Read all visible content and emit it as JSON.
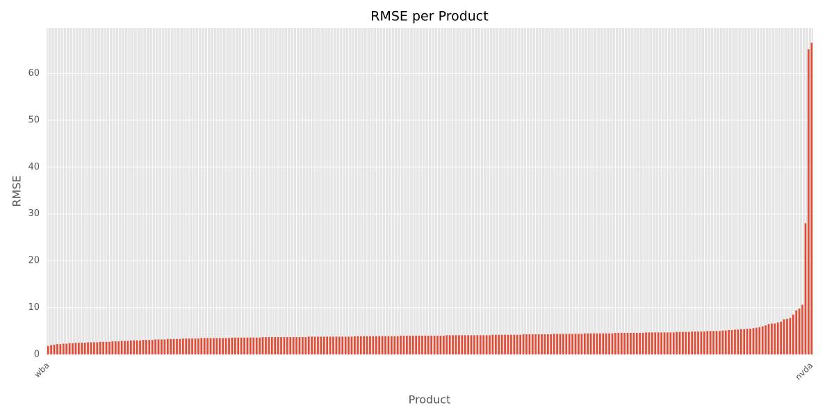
{
  "chart_data": {
    "type": "bar",
    "title": "RMSE per Product",
    "x_label": "Product",
    "y_label": "RMSE",
    "categories": [
      "wba",
      null,
      null,
      null,
      null,
      null,
      null,
      null,
      null,
      null,
      null,
      null,
      null,
      null,
      null,
      null,
      null,
      null,
      null,
      null,
      null,
      null,
      null,
      null,
      null,
      null,
      null,
      null,
      null,
      null,
      null,
      null,
      null,
      null,
      null,
      null,
      null,
      null,
      null,
      null,
      null,
      null,
      null,
      null,
      null,
      null,
      null,
      null,
      null,
      null,
      null,
      null,
      null,
      null,
      null,
      null,
      null,
      null,
      null,
      null,
      null,
      null,
      null,
      null,
      null,
      null,
      null,
      null,
      null,
      null,
      null,
      null,
      null,
      null,
      null,
      null,
      null,
      null,
      null,
      null,
      null,
      null,
      null,
      null,
      null,
      null,
      null,
      null,
      null,
      null,
      null,
      null,
      null,
      null,
      null,
      null,
      null,
      null,
      null,
      null,
      null,
      null,
      null,
      null,
      null,
      null,
      null,
      null,
      null,
      null,
      null,
      null,
      null,
      null,
      null,
      null,
      null,
      null,
      null,
      null,
      null,
      null,
      null,
      null,
      null,
      null,
      null,
      null,
      null,
      null,
      null,
      null,
      null,
      null,
      null,
      null,
      null,
      null,
      null,
      null,
      null,
      null,
      null,
      null,
      null,
      null,
      null,
      null,
      null,
      null,
      null,
      null,
      null,
      null,
      null,
      null,
      null,
      null,
      null,
      null,
      null,
      null,
      null,
      null,
      null,
      null,
      null,
      null,
      null,
      null,
      null,
      null,
      null,
      null,
      null,
      null,
      null,
      null,
      null,
      null,
      null,
      null,
      null,
      null,
      null,
      null,
      null,
      null,
      null,
      null,
      null,
      null,
      null,
      null,
      null,
      null,
      null,
      null,
      null,
      null,
      null,
      null,
      null,
      null,
      null,
      null,
      null,
      null,
      null,
      null,
      null,
      null,
      null,
      null,
      null,
      null,
      null,
      null,
      null,
      null,
      null,
      null,
      null,
      null,
      null,
      null,
      null,
      null,
      null,
      null,
      null,
      null,
      null,
      null,
      null,
      null,
      null,
      null,
      null,
      null,
      null,
      null,
      null,
      null,
      null,
      null,
      null,
      null,
      null,
      "nvda"
    ],
    "values": [
      1.8,
      2.0,
      2.1,
      2.2,
      2.2,
      2.3,
      2.3,
      2.4,
      2.4,
      2.5,
      2.5,
      2.5,
      2.5,
      2.6,
      2.6,
      2.6,
      2.6,
      2.7,
      2.7,
      2.7,
      2.7,
      2.8,
      2.8,
      2.8,
      2.9,
      2.9,
      2.9,
      3.0,
      3.0,
      3.0,
      3.0,
      3.1,
      3.1,
      3.1,
      3.1,
      3.2,
      3.2,
      3.2,
      3.2,
      3.3,
      3.3,
      3.3,
      3.3,
      3.3,
      3.4,
      3.4,
      3.4,
      3.4,
      3.4,
      3.4,
      3.5,
      3.5,
      3.5,
      3.5,
      3.5,
      3.5,
      3.5,
      3.5,
      3.5,
      3.5,
      3.6,
      3.6,
      3.6,
      3.6,
      3.6,
      3.6,
      3.6,
      3.6,
      3.6,
      3.6,
      3.7,
      3.7,
      3.7,
      3.7,
      3.7,
      3.7,
      3.7,
      3.7,
      3.7,
      3.7,
      3.7,
      3.7,
      3.7,
      3.7,
      3.7,
      3.8,
      3.8,
      3.8,
      3.8,
      3.8,
      3.8,
      3.8,
      3.8,
      3.8,
      3.8,
      3.8,
      3.8,
      3.8,
      3.8,
      3.8,
      3.9,
      3.9,
      3.9,
      3.9,
      3.9,
      3.9,
      3.9,
      3.9,
      3.9,
      3.9,
      3.9,
      3.9,
      3.9,
      3.9,
      3.9,
      4.0,
      4.0,
      4.0,
      4.0,
      4.0,
      4.0,
      4.0,
      4.0,
      4.0,
      4.0,
      4.0,
      4.0,
      4.0,
      4.0,
      4.0,
      4.1,
      4.1,
      4.1,
      4.1,
      4.1,
      4.1,
      4.1,
      4.1,
      4.1,
      4.1,
      4.1,
      4.1,
      4.1,
      4.1,
      4.1,
      4.2,
      4.2,
      4.2,
      4.2,
      4.2,
      4.2,
      4.2,
      4.2,
      4.2,
      4.2,
      4.3,
      4.3,
      4.3,
      4.3,
      4.3,
      4.3,
      4.3,
      4.3,
      4.3,
      4.3,
      4.4,
      4.4,
      4.4,
      4.4,
      4.4,
      4.4,
      4.4,
      4.4,
      4.4,
      4.4,
      4.5,
      4.5,
      4.5,
      4.5,
      4.5,
      4.5,
      4.5,
      4.5,
      4.5,
      4.5,
      4.6,
      4.6,
      4.6,
      4.6,
      4.6,
      4.6,
      4.6,
      4.6,
      4.6,
      4.6,
      4.7,
      4.7,
      4.7,
      4.7,
      4.7,
      4.7,
      4.7,
      4.7,
      4.7,
      4.7,
      4.8,
      4.8,
      4.8,
      4.8,
      4.8,
      4.9,
      4.9,
      4.9,
      4.9,
      4.9,
      5.0,
      5.0,
      5.0,
      5.0,
      5.0,
      5.1,
      5.1,
      5.2,
      5.2,
      5.3,
      5.3,
      5.4,
      5.4,
      5.5,
      5.5,
      5.6,
      5.7,
      5.8,
      6.0,
      6.2,
      6.5,
      6.6,
      6.6,
      6.8,
      7.0,
      7.5,
      7.6,
      7.8,
      8.5,
      9.4,
      9.8,
      10.6,
      28.0,
      65.1,
      66.5
    ],
    "color": "#e24a33",
    "ylim": [
      0,
      69.7
    ],
    "yticks": [
      0,
      10,
      20,
      30,
      40,
      50,
      60
    ],
    "grid": true
  }
}
